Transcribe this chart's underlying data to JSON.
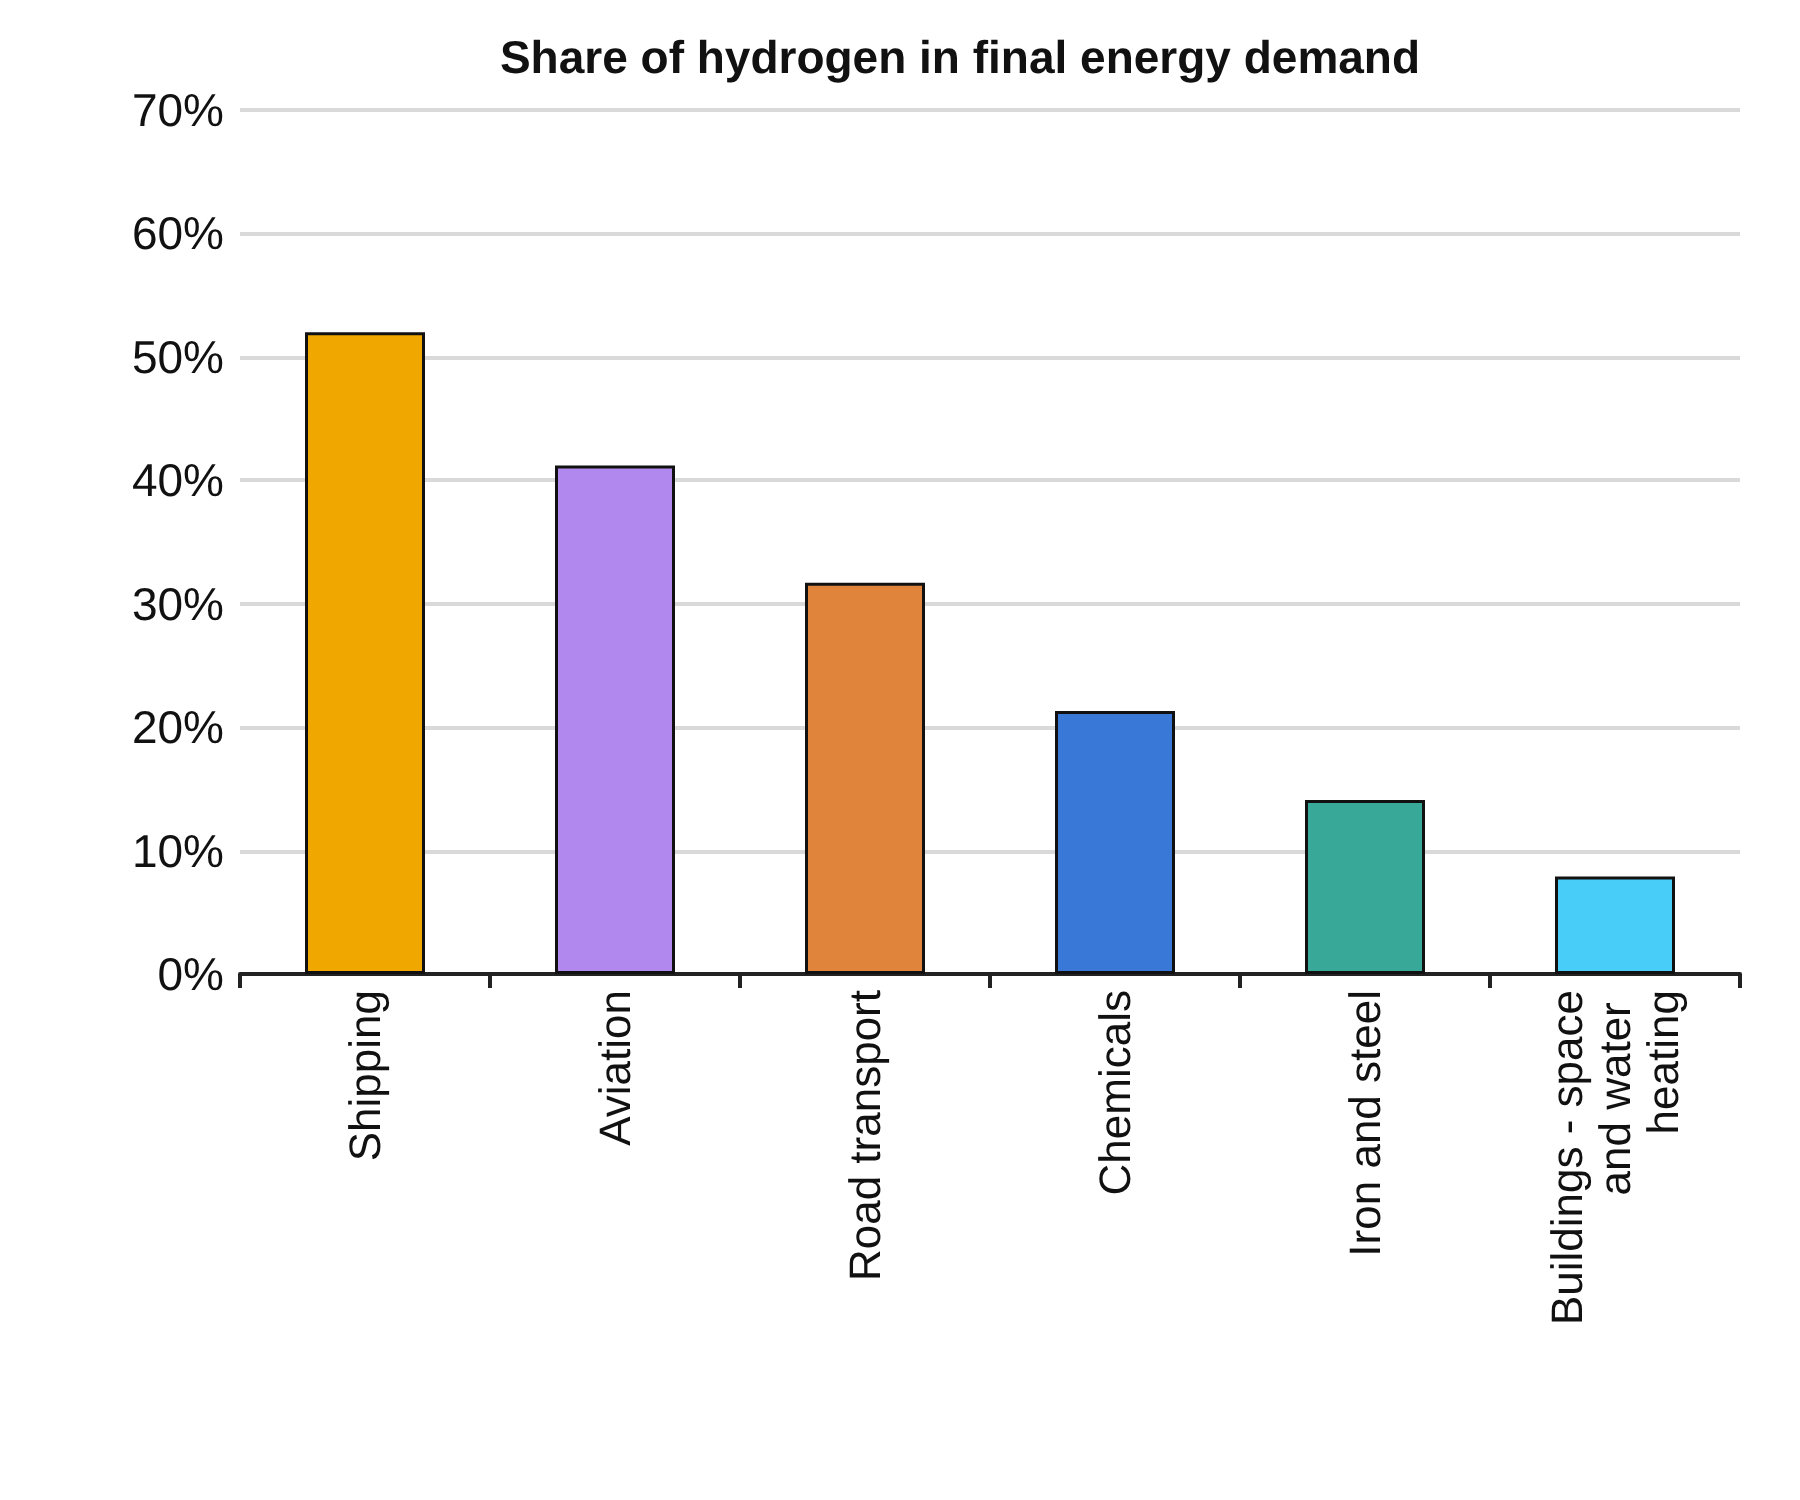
{
  "chart_data": {
    "type": "bar",
    "title": "Share of hydrogen in final energy demand",
    "categories": [
      "Shipping",
      "Aviation",
      "Road transport",
      "Chemicals",
      "Iron and steel",
      "Buildings - space and water heating"
    ],
    "values": [
      52.0,
      41.2,
      31.7,
      21.3,
      14.1,
      7.9
    ],
    "colors": [
      "#f0a800",
      "#b088ee",
      "#e0843c",
      "#3a78d8",
      "#38a898",
      "#48ccf8"
    ],
    "ylim": [
      0,
      70
    ],
    "yticks": [
      {
        "value": 0,
        "label": "0%"
      },
      {
        "value": 10,
        "label": "10%"
      },
      {
        "value": 20,
        "label": "20%"
      },
      {
        "value": 30,
        "label": "30%"
      },
      {
        "value": 40,
        "label": "40%"
      },
      {
        "value": 50,
        "label": "50%"
      },
      {
        "value": 60,
        "label": "60%"
      },
      {
        "value": 70,
        "label": "70%"
      }
    ],
    "grid": "y"
  }
}
